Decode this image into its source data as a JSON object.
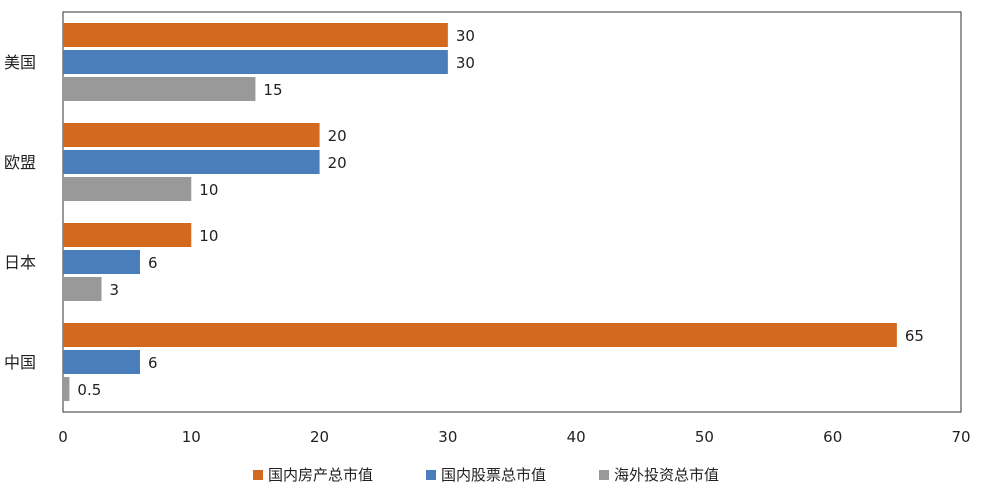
{
  "chart_data": {
    "type": "bar",
    "orientation": "horizontal",
    "categories": [
      "美国",
      "欧盟",
      "日本",
      "中国"
    ],
    "series": [
      {
        "name": "国内房产总市值",
        "color": "#D2691E",
        "values": [
          30,
          20,
          10,
          65
        ],
        "labels": [
          "30",
          "20",
          "10",
          "65"
        ]
      },
      {
        "name": "国内股票总市值",
        "color": "#4A7EBB",
        "values": [
          30,
          20,
          6,
          6
        ],
        "labels": [
          "30",
          "20",
          "6",
          "6"
        ]
      },
      {
        "name": "海外投资总市值",
        "color": "#999999",
        "values": [
          15,
          10,
          3,
          0.5
        ],
        "labels": [
          "15",
          "10",
          "3",
          "0.5"
        ]
      }
    ],
    "xlim": [
      0,
      70
    ],
    "xticks": [
      "0",
      "10",
      "20",
      "30",
      "40",
      "50",
      "60",
      "70"
    ],
    "grid": false,
    "legend_position": "bottom-center"
  }
}
